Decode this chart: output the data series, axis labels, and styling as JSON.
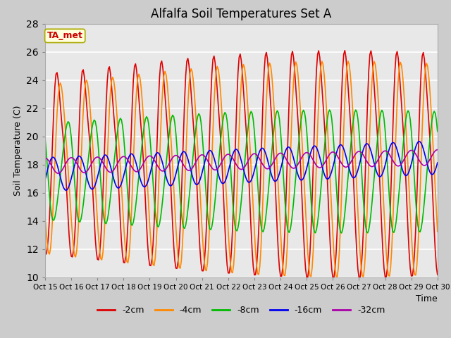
{
  "title": "Alfalfa Soil Temperatures Set A",
  "xlabel": "Time",
  "ylabel": "Soil Temperature (C)",
  "ylim": [
    10,
    28
  ],
  "xtick_labels": [
    "Oct 15",
    "Oct 16",
    "Oct 17",
    "Oct 18",
    "Oct 19",
    "Oct 20",
    "Oct 21",
    "Oct 22",
    "Oct 23",
    "Oct 24",
    "Oct 25",
    "Oct 26",
    "Oct 27",
    "Oct 28",
    "Oct 29",
    "Oct 30"
  ],
  "annotation_text": "TA_met",
  "annotation_color": "#cc0000",
  "annotation_bg": "#ffffdd",
  "annotation_border": "#aaaa00",
  "fig_bg": "#cccccc",
  "plot_bg": "#e8e8e8",
  "series_2cm": "#dd0000",
  "series_4cm": "#ff8800",
  "series_8cm": "#00bb00",
  "series_16cm": "#0000ee",
  "series_32cm": "#aa00aa",
  "legend_colors": [
    "#dd0000",
    "#ff8800",
    "#00bb00",
    "#0000ee",
    "#aa00aa"
  ],
  "legend_labels": [
    "-2cm",
    "-4cm",
    "-8cm",
    "-16cm",
    "-32cm"
  ]
}
